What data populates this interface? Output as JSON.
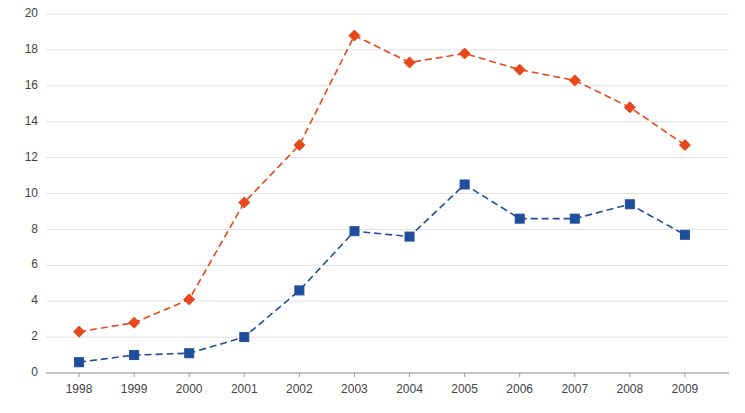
{
  "chart_data": {
    "type": "line",
    "x": [
      1998,
      1999,
      2000,
      2001,
      2002,
      2003,
      2004,
      2005,
      2006,
      2007,
      2008,
      2009
    ],
    "series": [
      {
        "color": "#e8471c",
        "marker": "diamond",
        "line_style": "dashed",
        "values": [
          2.3,
          2.8,
          4.1,
          9.5,
          12.7,
          18.8,
          17.3,
          17.8,
          16.9,
          16.3,
          14.8,
          12.7
        ]
      },
      {
        "color": "#1f4e9c",
        "marker": "square",
        "line_style": "dashed",
        "values": [
          0.6,
          1.0,
          1.1,
          2.0,
          4.6,
          7.9,
          7.6,
          10.5,
          8.6,
          8.6,
          9.4,
          7.7
        ]
      }
    ],
    "xlim": [
      1997.4,
      2009.8
    ],
    "xticks": [
      1998,
      1999,
      2000,
      2001,
      2002,
      2003,
      2004,
      2005,
      2006,
      2007,
      2008,
      2009
    ],
    "ylim": [
      0,
      20
    ],
    "yticks": [
      0,
      2,
      4,
      6,
      8,
      10,
      12,
      14,
      16,
      18,
      20
    ],
    "grid": true
  }
}
